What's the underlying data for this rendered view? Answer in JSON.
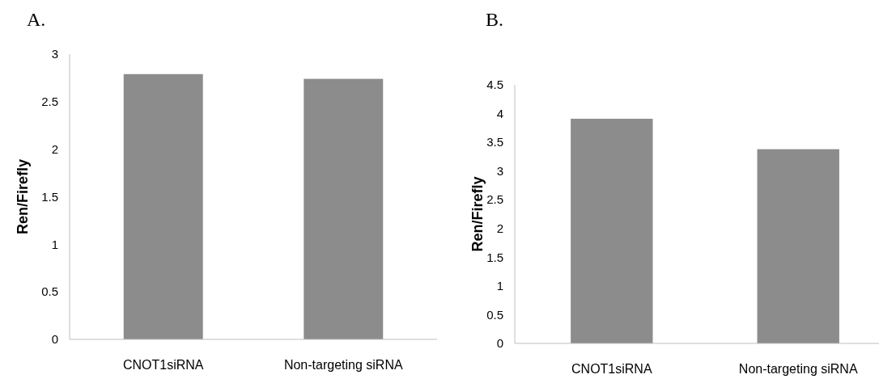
{
  "chart_data": [
    {
      "type": "bar",
      "title": "A.",
      "ylabel": "Ren/Firefly",
      "categories": [
        "CNOT1siRNA",
        "Non-targeting siRNA"
      ],
      "values": [
        2.79,
        2.74
      ],
      "color": "#8c8c8c",
      "ylim": [
        0,
        3
      ],
      "yticks": [
        0,
        {
          "value": 0.5,
          "label": "0.5"
        },
        1,
        {
          "value": 1.5,
          "label": "1.5"
        },
        2,
        {
          "value": 2.5,
          "label": "2.5"
        },
        3
      ]
    },
    {
      "type": "bar",
      "title": "B.",
      "ylabel": "Ren/Firefly",
      "categories": [
        "CNOT1siRNA",
        "Non-targeting siRNA"
      ],
      "values": [
        3.91,
        3.38
      ],
      "color": "#8c8c8c",
      "ylim": [
        0,
        4.5
      ],
      "yticks": [
        0,
        {
          "value": 0.5,
          "label": "0.5"
        },
        1,
        {
          "value": 1.5,
          "label": "1.5"
        },
        2,
        {
          "value": 2.5,
          "label": "2.5"
        },
        3,
        {
          "value": 3.5,
          "label": "3.5"
        },
        4,
        {
          "value": 4.5,
          "label": "4.5"
        }
      ]
    }
  ]
}
